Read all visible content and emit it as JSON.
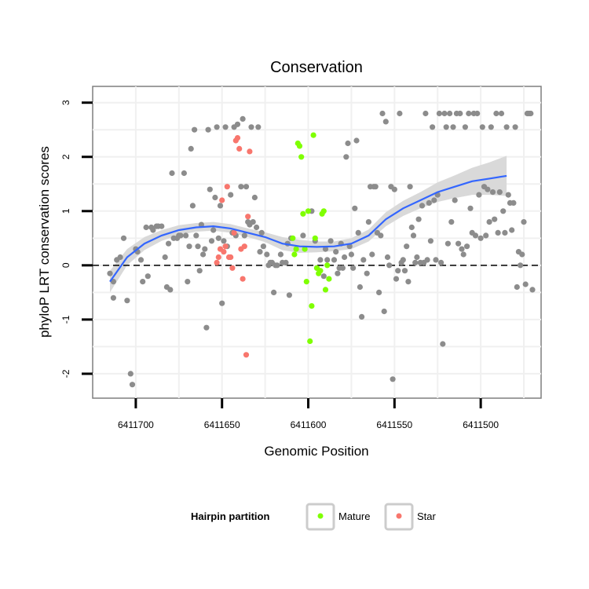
{
  "chart_data": {
    "type": "scatter",
    "title": "Conservation",
    "xlabel": "Genomic Position",
    "ylabel": "phyloP LRT conservation scores",
    "x_reversed": true,
    "xlim": [
      6411725,
      6411465
    ],
    "ylim": [
      -2.45,
      3.3
    ],
    "x_ticks": [
      6411700,
      6411650,
      6411600,
      6411550,
      6411500
    ],
    "x_tick_labels": [
      "6411700",
      "6411650",
      "6411600",
      "6411550",
      "6411500"
    ],
    "y_ticks": [
      -2,
      -1,
      0,
      1,
      2,
      3
    ],
    "y_tick_labels": [
      "-2",
      "-1",
      "0",
      "1",
      "2",
      "3"
    ],
    "reference_line": {
      "y": 0,
      "style": "dashed"
    },
    "grid": true,
    "legend": {
      "title": "Hairpin partition",
      "position": "bottom",
      "entries": [
        {
          "label": "Mature",
          "color": "#7fff00"
        },
        {
          "label": "Star",
          "color": "#f8766d"
        }
      ]
    },
    "colors": {
      "other": "#8c8c8c",
      "mature": "#7fff00",
      "star": "#f8766d",
      "smooth": "#3366ff",
      "ribbon": "#d9d9d9"
    },
    "series": [
      {
        "group": "other",
        "points": [
          [
            6411715,
            -0.15
          ],
          [
            6411713,
            -0.3
          ],
          [
            6411713,
            -0.6
          ],
          [
            6411711,
            0.1
          ],
          [
            6411709,
            0.15
          ],
          [
            6411707,
            0.5
          ],
          [
            6411705,
            -0.65
          ],
          [
            6411703,
            -2.0
          ],
          [
            6411702,
            -2.2
          ],
          [
            6411700,
            0.3
          ],
          [
            6411699,
            0.25
          ],
          [
            6411697,
            0.1
          ],
          [
            6411696,
            -0.3
          ],
          [
            6411694,
            0.7
          ],
          [
            6411693,
            -0.2
          ],
          [
            6411691,
            0.7
          ],
          [
            6411690,
            0.65
          ],
          [
            6411688,
            0.72
          ],
          [
            6411687,
            0.72
          ],
          [
            6411685,
            0.72
          ],
          [
            6411683,
            0.15
          ],
          [
            6411682,
            -0.4
          ],
          [
            6411681,
            0.4
          ],
          [
            6411680,
            -0.45
          ],
          [
            6411679,
            1.7
          ],
          [
            6411678,
            0.5
          ],
          [
            6411676,
            0.5
          ],
          [
            6411675,
            0.55
          ],
          [
            6411674,
            0.55
          ],
          [
            6411672,
            1.7
          ],
          [
            6411671,
            0.55
          ],
          [
            6411670,
            -0.3
          ],
          [
            6411669,
            0.35
          ],
          [
            6411668,
            2.15
          ],
          [
            6411667,
            1.1
          ],
          [
            6411666,
            2.5
          ],
          [
            6411665,
            0.55
          ],
          [
            6411664,
            0.35
          ],
          [
            6411663,
            -0.1
          ],
          [
            6411662,
            0.75
          ],
          [
            6411661,
            0.2
          ],
          [
            6411660,
            0.3
          ],
          [
            6411659,
            -1.15
          ],
          [
            6411658,
            2.5
          ],
          [
            6411657,
            1.4
          ],
          [
            6411656,
            0.45
          ],
          [
            6411655,
            0.65
          ],
          [
            6411654,
            1.25
          ],
          [
            6411653,
            2.55
          ],
          [
            6411652,
            0.5
          ],
          [
            6411651,
            1.1
          ],
          [
            6411650,
            -0.7
          ],
          [
            6411649,
            0.45
          ],
          [
            6411648,
            2.55
          ],
          [
            6411647,
            0.35
          ],
          [
            6411645,
            1.3
          ],
          [
            6411644,
            0.6
          ],
          [
            6411643,
            2.55
          ],
          [
            6411642,
            0.55
          ],
          [
            6411641,
            2.6
          ],
          [
            6411639,
            1.45
          ],
          [
            6411638,
            2.7
          ],
          [
            6411637,
            0.55
          ],
          [
            6411636,
            1.45
          ],
          [
            6411635,
            0.8
          ],
          [
            6411634,
            0.75
          ],
          [
            6411633,
            2.55
          ],
          [
            6411632,
            0.8
          ],
          [
            6411631,
            1.25
          ],
          [
            6411630,
            0.7
          ],
          [
            6411629,
            2.55
          ],
          [
            6411628,
            0.25
          ],
          [
            6411627,
            0.6
          ],
          [
            6411626,
            0.35
          ],
          [
            6411624,
            0.2
          ],
          [
            6411623,
            0.0
          ],
          [
            6411622,
            0.05
          ],
          [
            6411621,
            0.05
          ],
          [
            6411620,
            -0.5
          ],
          [
            6411619,
            0.0
          ],
          [
            6411618,
            0.0
          ],
          [
            6411616,
            0.2
          ],
          [
            6411615,
            0.05
          ],
          [
            6411613,
            0.05
          ],
          [
            6411612,
            0.4
          ],
          [
            6411611,
            -0.55
          ],
          [
            6411610,
            0.5
          ],
          [
            6411603,
            0.55
          ],
          [
            6411598,
            1.0
          ],
          [
            6411596,
            0.45
          ],
          [
            6411595,
            -0.05
          ],
          [
            6411593,
            0.1
          ],
          [
            6411591,
            -0.2
          ],
          [
            6411590,
            0.3
          ],
          [
            6411589,
            0.1
          ],
          [
            6411587,
            0.45
          ],
          [
            6411585,
            0.1
          ],
          [
            6411584,
            0.25
          ],
          [
            6411583,
            -0.15
          ],
          [
            6411582,
            -0.05
          ],
          [
            6411581,
            0.4
          ],
          [
            6411580,
            -0.05
          ],
          [
            6411579,
            0.15
          ],
          [
            6411578,
            2.0
          ],
          [
            6411577,
            2.25
          ],
          [
            6411576,
            0.35
          ],
          [
            6411575,
            0.2
          ],
          [
            6411574,
            -0.05
          ],
          [
            6411573,
            1.05
          ],
          [
            6411572,
            2.3
          ],
          [
            6411571,
            0.6
          ],
          [
            6411570,
            -0.4
          ],
          [
            6411569,
            -0.95
          ],
          [
            6411568,
            0.1
          ],
          [
            6411566,
            -0.15
          ],
          [
            6411565,
            0.8
          ],
          [
            6411564,
            1.45
          ],
          [
            6411563,
            0.2
          ],
          [
            6411562,
            1.45
          ],
          [
            6411561,
            1.45
          ],
          [
            6411560,
            0.6
          ],
          [
            6411559,
            -0.5
          ],
          [
            6411558,
            0.55
          ],
          [
            6411557,
            2.8
          ],
          [
            6411556,
            -0.85
          ],
          [
            6411555,
            2.65
          ],
          [
            6411554,
            0.15
          ],
          [
            6411553,
            0.0
          ],
          [
            6411552,
            1.45
          ],
          [
            6411551,
            -2.1
          ],
          [
            6411550,
            1.4
          ],
          [
            6411549,
            -0.25
          ],
          [
            6411548,
            -0.1
          ],
          [
            6411547,
            2.8
          ],
          [
            6411546,
            0.05
          ],
          [
            6411545,
            0.1
          ],
          [
            6411544,
            -0.1
          ],
          [
            6411543,
            0.35
          ],
          [
            6411542,
            -0.3
          ],
          [
            6411541,
            1.45
          ],
          [
            6411540,
            0.7
          ],
          [
            6411539,
            0.55
          ],
          [
            6411538,
            0.05
          ],
          [
            6411537,
            0.15
          ],
          [
            6411536,
            0.85
          ],
          [
            6411535,
            0.05
          ],
          [
            6411534,
            1.1
          ],
          [
            6411533,
            0.05
          ],
          [
            6411532,
            2.8
          ],
          [
            6411531,
            0.1
          ],
          [
            6411530,
            1.15
          ],
          [
            6411529,
            0.45
          ],
          [
            6411528,
            2.55
          ],
          [
            6411527,
            1.2
          ],
          [
            6411526,
            0.1
          ],
          [
            6411525,
            1.3
          ],
          [
            6411524,
            2.8
          ],
          [
            6411523,
            0.05
          ],
          [
            6411522,
            -1.45
          ],
          [
            6411521,
            2.8
          ],
          [
            6411520,
            2.55
          ],
          [
            6411519,
            0.4
          ],
          [
            6411518,
            2.8
          ],
          [
            6411517,
            0.8
          ],
          [
            6411516,
            2.55
          ],
          [
            6411515,
            1.2
          ],
          [
            6411514,
            2.8
          ],
          [
            6411513,
            0.4
          ],
          [
            6411512,
            2.8
          ],
          [
            6411511,
            0.3
          ],
          [
            6411510,
            0.2
          ],
          [
            6411509,
            2.55
          ],
          [
            6411508,
            0.35
          ],
          [
            6411507,
            2.8
          ],
          [
            6411506,
            1.05
          ],
          [
            6411505,
            0.6
          ],
          [
            6411504,
            2.8
          ],
          [
            6411503,
            0.55
          ],
          [
            6411502,
            2.8
          ],
          [
            6411501,
            1.3
          ],
          [
            6411500,
            0.5
          ],
          [
            6411499,
            2.55
          ],
          [
            6411498,
            1.45
          ],
          [
            6411497,
            0.55
          ],
          [
            6411496,
            1.4
          ],
          [
            6411495,
            0.8
          ],
          [
            6411494,
            2.55
          ],
          [
            6411493,
            1.35
          ],
          [
            6411492,
            0.85
          ],
          [
            6411491,
            2.8
          ],
          [
            6411490,
            0.6
          ],
          [
            6411489,
            1.35
          ],
          [
            6411488,
            2.8
          ],
          [
            6411487,
            1.0
          ],
          [
            6411486,
            0.6
          ],
          [
            6411485,
            2.55
          ],
          [
            6411484,
            1.3
          ],
          [
            6411483,
            1.15
          ],
          [
            6411482,
            0.65
          ],
          [
            6411481,
            1.15
          ],
          [
            6411480,
            2.55
          ],
          [
            6411479,
            -0.4
          ],
          [
            6411478,
            0.25
          ],
          [
            6411477,
            0.0
          ],
          [
            6411476,
            0.2
          ],
          [
            6411475,
            0.8
          ],
          [
            6411474,
            -0.35
          ],
          [
            6411473,
            2.8
          ],
          [
            6411472,
            2.8
          ],
          [
            6411471,
            2.8
          ],
          [
            6411470,
            -0.45
          ]
        ]
      },
      {
        "group": "mature",
        "points": [
          [
            6411609,
            0.5
          ],
          [
            6411608,
            0.2
          ],
          [
            6411607,
            0.3
          ],
          [
            6411606,
            2.25
          ],
          [
            6411605,
            2.2
          ],
          [
            6411604,
            2.0
          ],
          [
            6411603,
            0.95
          ],
          [
            6411602,
            0.3
          ],
          [
            6411601,
            -0.3
          ],
          [
            6411600,
            1.0
          ],
          [
            6411599,
            -1.4
          ],
          [
            6411598,
            -0.75
          ],
          [
            6411597,
            2.4
          ],
          [
            6411596,
            0.5
          ],
          [
            6411595,
            -0.05
          ],
          [
            6411594,
            -0.15
          ],
          [
            6411593,
            -0.1
          ],
          [
            6411592,
            0.95
          ],
          [
            6411591,
            1.0
          ],
          [
            6411590,
            -0.45
          ],
          [
            6411589,
            0.0
          ],
          [
            6411588,
            -0.25
          ]
        ]
      },
      {
        "group": "star",
        "points": [
          [
            6411653,
            0.05
          ],
          [
            6411652,
            0.15
          ],
          [
            6411651,
            0.3
          ],
          [
            6411650,
            1.2
          ],
          [
            6411649,
            0.25
          ],
          [
            6411648,
            0.35
          ],
          [
            6411647,
            1.45
          ],
          [
            6411646,
            0.15
          ],
          [
            6411645,
            0.15
          ],
          [
            6411644,
            -0.05
          ],
          [
            6411643,
            0.6
          ],
          [
            6411642,
            2.3
          ],
          [
            6411641,
            2.35
          ],
          [
            6411640,
            2.15
          ],
          [
            6411639,
            0.3
          ],
          [
            6411638,
            -0.25
          ],
          [
            6411637,
            0.35
          ],
          [
            6411636,
            -1.65
          ],
          [
            6411635,
            0.9
          ],
          [
            6411634,
            2.1
          ]
        ]
      }
    ],
    "smooth": [
      [
        6411715,
        -0.3
      ],
      [
        6411705,
        0.15
      ],
      [
        6411695,
        0.4
      ],
      [
        6411685,
        0.55
      ],
      [
        6411675,
        0.65
      ],
      [
        6411665,
        0.7
      ],
      [
        6411655,
        0.72
      ],
      [
        6411645,
        0.68
      ],
      [
        6411635,
        0.6
      ],
      [
        6411625,
        0.52
      ],
      [
        6411615,
        0.4
      ],
      [
        6411605,
        0.35
      ],
      [
        6411595,
        0.34
      ],
      [
        6411585,
        0.35
      ],
      [
        6411575,
        0.4
      ],
      [
        6411565,
        0.55
      ],
      [
        6411555,
        0.85
      ],
      [
        6411545,
        1.05
      ],
      [
        6411535,
        1.2
      ],
      [
        6411525,
        1.35
      ],
      [
        6411515,
        1.45
      ],
      [
        6411505,
        1.55
      ],
      [
        6411495,
        1.6
      ],
      [
        6411485,
        1.65
      ]
    ],
    "smooth_band": [
      [
        6411715,
        -0.5,
        -0.1
      ],
      [
        6411705,
        0.0,
        0.3
      ],
      [
        6411695,
        0.28,
        0.52
      ],
      [
        6411685,
        0.45,
        0.65
      ],
      [
        6411675,
        0.56,
        0.74
      ],
      [
        6411665,
        0.62,
        0.78
      ],
      [
        6411655,
        0.64,
        0.8
      ],
      [
        6411645,
        0.6,
        0.76
      ],
      [
        6411635,
        0.52,
        0.68
      ],
      [
        6411625,
        0.43,
        0.61
      ],
      [
        6411615,
        0.28,
        0.52
      ],
      [
        6411605,
        0.23,
        0.47
      ],
      [
        6411595,
        0.24,
        0.44
      ],
      [
        6411585,
        0.26,
        0.44
      ],
      [
        6411575,
        0.3,
        0.5
      ],
      [
        6411565,
        0.44,
        0.66
      ],
      [
        6411555,
        0.72,
        0.98
      ],
      [
        6411545,
        0.91,
        1.19
      ],
      [
        6411535,
        1.05,
        1.35
      ],
      [
        6411525,
        1.17,
        1.53
      ],
      [
        6411515,
        1.24,
        1.66
      ],
      [
        6411505,
        1.3,
        1.8
      ],
      [
        6411495,
        1.3,
        1.9
      ],
      [
        6411485,
        1.28,
        2.02
      ]
    ]
  }
}
